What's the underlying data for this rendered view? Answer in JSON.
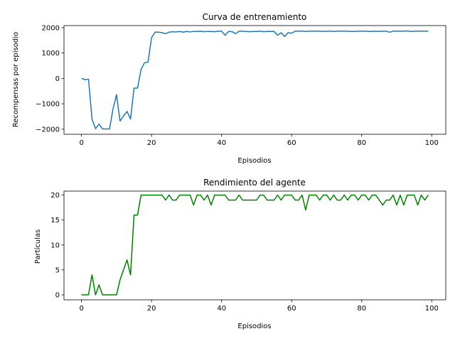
{
  "chart_data": [
    {
      "type": "line",
      "title": "Curva de entrenamiento",
      "xlabel": "Episodios",
      "ylabel": "Recompensas por episodio",
      "xlim": [
        -5,
        104
      ],
      "ylim": [
        -2200,
        2080
      ],
      "xticks": [
        "0",
        "20",
        "40",
        "60",
        "80",
        "100"
      ],
      "yticks": [
        "−2000",
        "−1000",
        "0",
        "1000",
        "2000"
      ],
      "grid": false,
      "color": "#1f77b4",
      "x_start": 0,
      "values": [
        0,
        -50,
        -30,
        -1600,
        -1980,
        -1800,
        -1990,
        -1990,
        -1990,
        -1200,
        -640,
        -1680,
        -1480,
        -1300,
        -1600,
        -380,
        -380,
        350,
        620,
        640,
        1600,
        1820,
        1820,
        1800,
        1760,
        1820,
        1840,
        1830,
        1850,
        1820,
        1850,
        1830,
        1850,
        1850,
        1860,
        1840,
        1850,
        1850,
        1840,
        1860,
        1860,
        1700,
        1850,
        1840,
        1760,
        1860,
        1860,
        1850,
        1840,
        1850,
        1850,
        1860,
        1840,
        1850,
        1850,
        1850,
        1700,
        1800,
        1650,
        1800,
        1780,
        1860,
        1860,
        1860,
        1850,
        1860,
        1860,
        1860,
        1860,
        1850,
        1860,
        1860,
        1850,
        1860,
        1860,
        1860,
        1860,
        1850,
        1850,
        1860,
        1860,
        1860,
        1850,
        1850,
        1860,
        1850,
        1860,
        1860,
        1820,
        1860,
        1860,
        1860,
        1860,
        1870,
        1850,
        1860,
        1860,
        1860,
        1860,
        1860
      ]
    },
    {
      "type": "line",
      "title": "Rendimiento del agente",
      "xlabel": "Episodios",
      "ylabel": "Partículas",
      "xlim": [
        -5,
        104
      ],
      "ylim": [
        -1,
        20.8
      ],
      "xticks": [
        "0",
        "20",
        "40",
        "60",
        "80",
        "100"
      ],
      "yticks": [
        "0",
        "5",
        "10",
        "15",
        "20"
      ],
      "grid": false,
      "color": "#008000",
      "x_start": 0,
      "values": [
        0,
        0,
        0,
        4,
        0,
        2,
        0,
        0,
        0,
        0,
        0,
        3,
        5,
        7,
        4,
        16,
        16,
        20,
        20,
        20,
        20,
        20,
        20,
        20,
        19,
        20,
        19,
        19,
        20,
        20,
        20,
        20,
        18,
        20,
        20,
        19,
        20,
        18,
        20,
        20,
        20,
        20,
        19,
        19,
        19,
        20,
        19,
        19,
        19,
        19,
        19,
        20,
        20,
        19,
        19,
        19,
        20,
        19,
        20,
        20,
        20,
        19,
        19,
        20,
        17,
        20,
        20,
        20,
        19,
        20,
        20,
        19,
        20,
        19,
        19,
        20,
        19,
        20,
        20,
        19,
        20,
        20,
        19,
        20,
        20,
        19,
        18,
        19,
        19,
        20,
        18,
        20,
        18,
        20,
        20,
        20,
        18,
        20,
        19,
        20
      ]
    }
  ]
}
